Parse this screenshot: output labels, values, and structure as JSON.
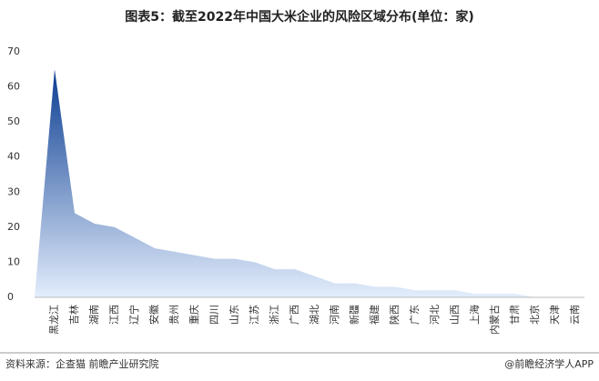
{
  "chart_data": {
    "type": "area",
    "title": "图表5：截至2022年中国大米企业的风险区域分布(单位：家)",
    "categories": [
      "黑龙江",
      "吉林",
      "湖南",
      "江西",
      "辽宁",
      "安徽",
      "贵州",
      "重庆",
      "四川",
      "山东",
      "江苏",
      "浙江",
      "广西",
      "湖北",
      "河南",
      "新疆",
      "福建",
      "陕西",
      "广东",
      "河北",
      "山西",
      "上海",
      "内蒙古",
      "甘肃",
      "北京",
      "天津",
      "云南"
    ],
    "values": [
      65,
      24,
      21,
      20,
      17,
      14,
      13,
      12,
      11,
      11,
      10,
      8,
      8,
      6,
      4,
      4,
      3,
      3,
      2,
      2,
      2,
      1,
      1,
      1,
      0,
      0,
      0
    ],
    "color_top": "#0b3d91",
    "color_bottom": "#e3edfc",
    "ylim": [
      0,
      70
    ],
    "yticks": [
      0,
      10,
      20,
      30,
      40,
      50,
      60,
      70
    ],
    "grid": false,
    "source": "资料来源：企查猫 前瞻产业研究院",
    "credit": "@前瞻经济学人APP"
  }
}
